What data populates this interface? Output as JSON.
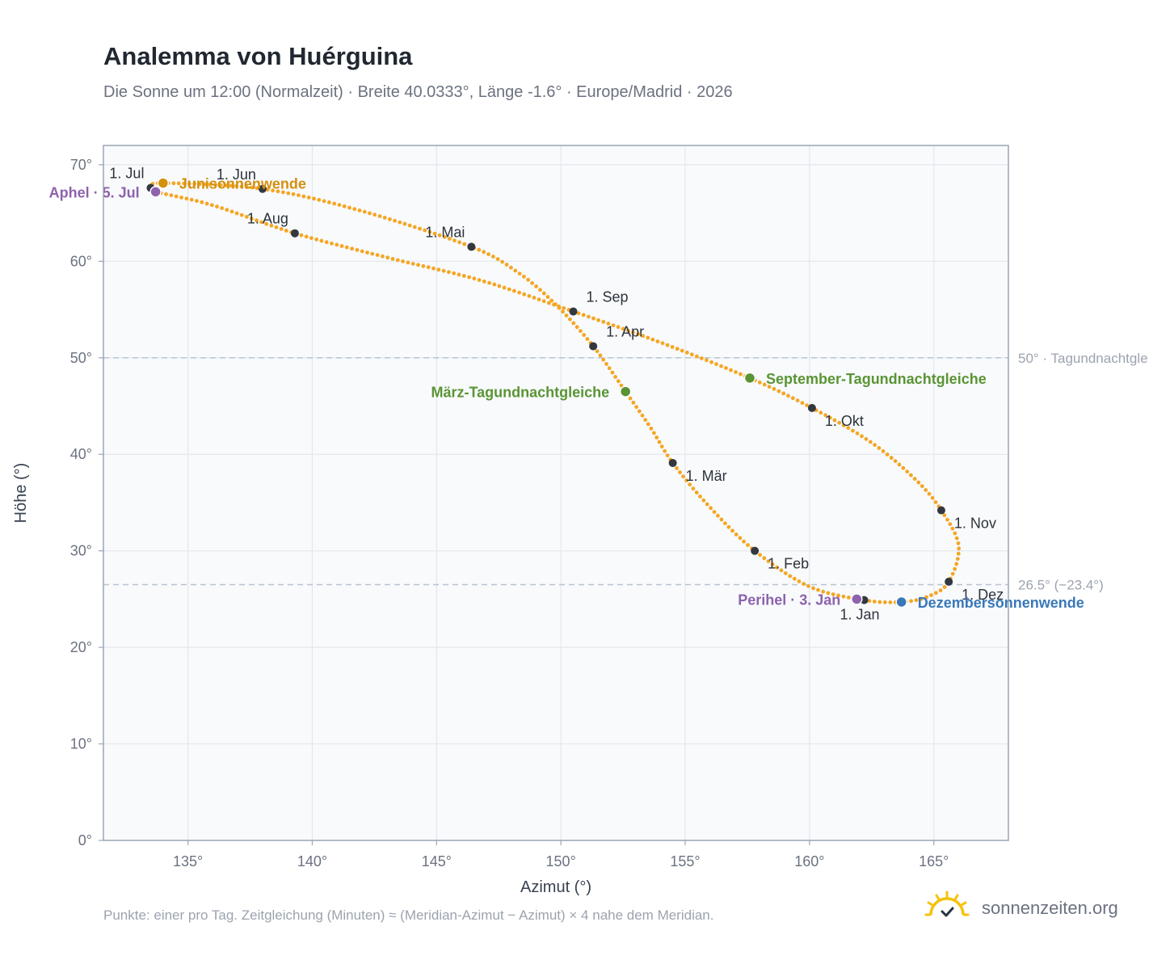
{
  "header": {
    "title": "Analemma von Huérguina",
    "subtitle": "Die Sonne um 12:00 (Normalzeit) · Breite 40.0333°, Länge -1.6° · Europe/Madrid · 2026"
  },
  "footer": {
    "note": "Punkte: einer pro Tag. Zeitgleichung (Minuten) ≈ (Meridian-Azimut − Azimut) × 4 nahe dem Meridian.",
    "brand": "sonnenzeiten.org"
  },
  "colors": {
    "curve": "#f5a623",
    "month_dot": "#333840",
    "solstice_summer": "#d4900e",
    "solstice_winter": "#3a78b8",
    "equinox": "#5a9434",
    "apsis": "#8e62ad",
    "reference_line": "#b8c4d0",
    "plot_bg": "#f8fafc",
    "grid": "#e3e8ee"
  },
  "chart_data": {
    "type": "scatter",
    "xlabel": "Azimut (°)",
    "ylabel": "Höhe (°)",
    "xlim": [
      131.6,
      168.0
    ],
    "ylim": [
      0,
      72
    ],
    "xticks": [
      135,
      140,
      145,
      150,
      155,
      160,
      165
    ],
    "yticks": [
      0,
      10,
      20,
      30,
      40,
      50,
      60,
      70
    ],
    "x_tick_labels": [
      "135°",
      "140°",
      "145°",
      "150°",
      "155°",
      "160°",
      "165°"
    ],
    "y_tick_labels": [
      "0°",
      "10°",
      "20°",
      "30°",
      "40°",
      "50°",
      "60°",
      "70°"
    ],
    "grid": true,
    "reference_lines": [
      {
        "y": 50.0,
        "label": "50° · Tagundnachtgle"
      },
      {
        "y": 26.5,
        "label": "26.5° (−23.4°)"
      }
    ],
    "curve_path": [
      {
        "x": 162.2,
        "y": 24.9
      },
      {
        "x": 160.0,
        "y": 26.3
      },
      {
        "x": 157.8,
        "y": 30.0
      },
      {
        "x": 156.0,
        "y": 34.5
      },
      {
        "x": 154.5,
        "y": 39.1
      },
      {
        "x": 153.6,
        "y": 42.8
      },
      {
        "x": 152.6,
        "y": 46.5
      },
      {
        "x": 151.3,
        "y": 51.2
      },
      {
        "x": 149.8,
        "y": 55.5
      },
      {
        "x": 148.3,
        "y": 58.8
      },
      {
        "x": 146.4,
        "y": 61.5
      },
      {
        "x": 142.0,
        "y": 65.2
      },
      {
        "x": 138.0,
        "y": 67.5
      },
      {
        "x": 134.0,
        "y": 68.1
      },
      {
        "x": 133.5,
        "y": 67.6
      },
      {
        "x": 133.7,
        "y": 67.2
      },
      {
        "x": 136.0,
        "y": 65.8
      },
      {
        "x": 139.3,
        "y": 62.9
      },
      {
        "x": 143.0,
        "y": 60.4
      },
      {
        "x": 146.8,
        "y": 58.0
      },
      {
        "x": 150.5,
        "y": 54.8
      },
      {
        "x": 154.0,
        "y": 51.6
      },
      {
        "x": 157.6,
        "y": 47.9
      },
      {
        "x": 160.1,
        "y": 44.8
      },
      {
        "x": 162.5,
        "y": 41.2
      },
      {
        "x": 164.3,
        "y": 37.3
      },
      {
        "x": 165.3,
        "y": 34.2
      },
      {
        "x": 166.0,
        "y": 30.5
      },
      {
        "x": 165.6,
        "y": 26.8
      },
      {
        "x": 164.8,
        "y": 25.3
      },
      {
        "x": 163.7,
        "y": 24.7
      },
      {
        "x": 162.2,
        "y": 24.9
      }
    ],
    "month_markers": [
      {
        "label": "1. Jan",
        "x": 162.2,
        "y": 24.9,
        "pos": "below"
      },
      {
        "label": "1. Feb",
        "x": 157.8,
        "y": 30.0,
        "pos": "below-right"
      },
      {
        "label": "1. Mär",
        "x": 154.5,
        "y": 39.1,
        "pos": "below-right"
      },
      {
        "label": "1. Apr",
        "x": 151.3,
        "y": 51.2,
        "pos": "above-right"
      },
      {
        "label": "1. Mai",
        "x": 146.4,
        "y": 61.5,
        "pos": "above-left"
      },
      {
        "label": "1. Jun",
        "x": 138.0,
        "y": 67.5,
        "pos": "above-left"
      },
      {
        "label": "1. Jul",
        "x": 133.5,
        "y": 67.6,
        "pos": "above-left"
      },
      {
        "label": "1. Aug",
        "x": 139.3,
        "y": 62.9,
        "pos": "above-left"
      },
      {
        "label": "1. Sep",
        "x": 150.5,
        "y": 54.8,
        "pos": "above-right"
      },
      {
        "label": "1. Okt",
        "x": 160.1,
        "y": 44.8,
        "pos": "below-right"
      },
      {
        "label": "1. Nov",
        "x": 165.3,
        "y": 34.2,
        "pos": "below-right"
      },
      {
        "label": "1. Dez",
        "x": 165.6,
        "y": 26.8,
        "pos": "below-right"
      }
    ],
    "special_points": [
      {
        "label": "Junisonnenwende",
        "x": 134.0,
        "y": 68.1,
        "kind": "solstice_summer",
        "pos": "right"
      },
      {
        "label": "Dezembersonnenwende",
        "x": 163.7,
        "y": 24.7,
        "kind": "solstice_winter",
        "pos": "right"
      },
      {
        "label": "März-Tagundnachtgleiche",
        "x": 152.6,
        "y": 46.5,
        "kind": "equinox",
        "pos": "left"
      },
      {
        "label": "September-Tagundnachtgleiche",
        "x": 157.6,
        "y": 47.9,
        "kind": "equinox",
        "pos": "right"
      },
      {
        "label": "Aphel · 5. Jul",
        "x": 133.7,
        "y": 67.2,
        "kind": "apsis",
        "pos": "left"
      },
      {
        "label": "Perihel · 3. Jan",
        "x": 161.9,
        "y": 25.0,
        "kind": "apsis",
        "pos": "left"
      }
    ]
  }
}
